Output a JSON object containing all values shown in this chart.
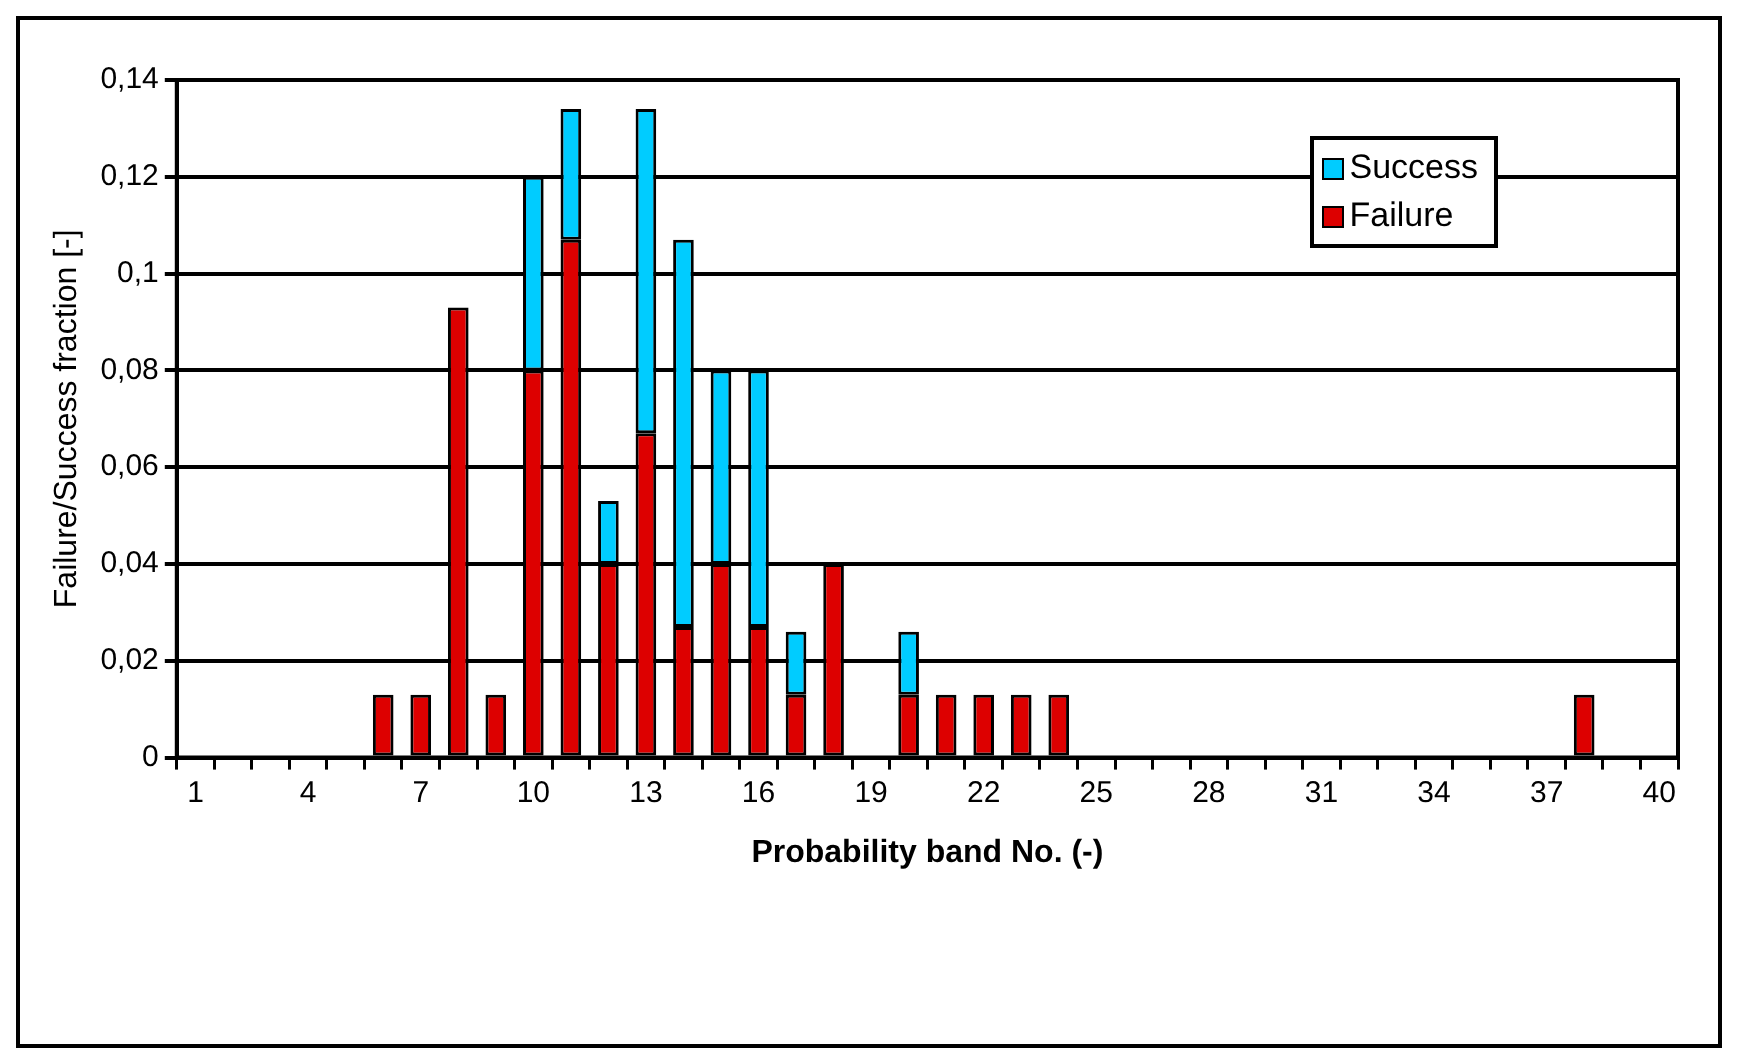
{
  "chart_data": {
    "type": "bar",
    "stacked": true,
    "xlabel": "Probability band No. (-)",
    "ylabel": "Failure/Success fraction [-]",
    "categories": [
      "1",
      null,
      null,
      "4",
      null,
      null,
      "7",
      null,
      null,
      "10",
      null,
      null,
      "13",
      null,
      null,
      "16",
      null,
      null,
      "19",
      null,
      null,
      "22",
      null,
      null,
      "25",
      null,
      null,
      "28",
      null,
      null,
      "31",
      null,
      null,
      "34",
      null,
      null,
      "37",
      null,
      null,
      "40"
    ],
    "series": [
      {
        "name": "Failure",
        "color": "#dd0000",
        "values": [
          0,
          0,
          0,
          0,
          0,
          0.013,
          0.013,
          0.093,
          0.013,
          0.08,
          0.107,
          0.04,
          0.067,
          0.027,
          0.04,
          0.027,
          0.013,
          0.04,
          0,
          0.013,
          0.013,
          0.013,
          0.013,
          0.013,
          0,
          0,
          0,
          0,
          0,
          0,
          0,
          0,
          0,
          0,
          0,
          0,
          0,
          0.013,
          0,
          0
        ]
      },
      {
        "name": "Success",
        "color": "#00ccff",
        "values": [
          0,
          0,
          0,
          0,
          0,
          0,
          0,
          0,
          0,
          0.04,
          0.027,
          0.013,
          0.067,
          0.08,
          0.04,
          0.053,
          0.013,
          0,
          0,
          0.013,
          0,
          0,
          0,
          0,
          0,
          0,
          0,
          0,
          0,
          0,
          0,
          0,
          0,
          0,
          0,
          0,
          0,
          0,
          0,
          0
        ]
      }
    ],
    "ylim": [
      0,
      0.14
    ],
    "yticks": [
      0,
      {
        "value": 0.02,
        "label": "0,02"
      },
      {
        "value": 0.04,
        "label": "0,04"
      },
      {
        "value": 0.06,
        "label": "0,06"
      },
      {
        "value": 0.08,
        "label": "0,08"
      },
      {
        "value": 0.1,
        "label": "0,1"
      },
      {
        "value": 0.12,
        "label": "0,12"
      },
      {
        "value": 0.14,
        "label": "0,14"
      }
    ],
    "grid": "y",
    "legend": "top right"
  }
}
